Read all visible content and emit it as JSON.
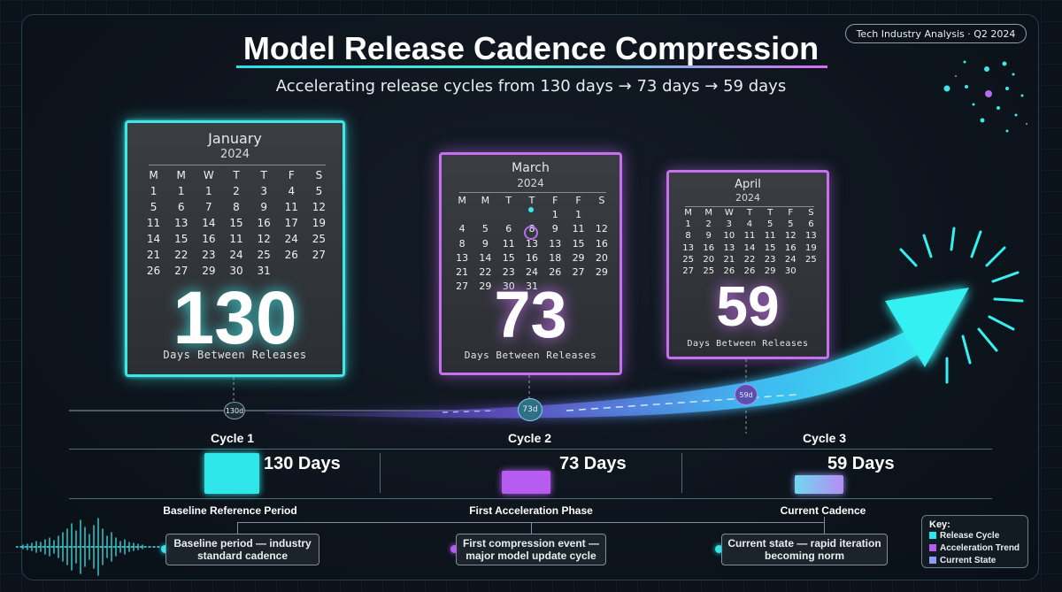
{
  "header": {
    "title": "Model Release Cadence Compression",
    "subtitle": "Accelerating release cycles from 130 days → 73 days → 59 days",
    "badge": "Tech Industry Analysis · Q2 2024"
  },
  "calendars": [
    {
      "month": "January",
      "year": "2024",
      "weekdays": [
        "M",
        "M",
        "W",
        "T",
        "T",
        "F",
        "S"
      ],
      "days": [
        "1",
        "1",
        "1",
        "2",
        "3",
        "4",
        "5",
        "5",
        "6",
        "7",
        "8",
        "9",
        "11",
        "12",
        "11",
        "13",
        "14",
        "15",
        "16",
        "17",
        "19",
        "14",
        "15",
        "16",
        "11",
        "12",
        "24",
        "25",
        "21",
        "22",
        "23",
        "24",
        "25",
        "26",
        "27",
        "26",
        "27",
        "29",
        "30",
        "31"
      ],
      "number": "130",
      "caption": "Days Between Releases"
    },
    {
      "month": "March",
      "year": "2024",
      "weekdays": [
        "M",
        "M",
        "T",
        "T",
        "F",
        "F",
        "S"
      ],
      "days": [
        "",
        "",
        "",
        "",
        "1",
        "1",
        "",
        "4",
        "5",
        "6",
        "8",
        "9",
        "11",
        "12",
        "8",
        "9",
        "11",
        "13",
        "13",
        "15",
        "16",
        "13",
        "14",
        "15",
        "16",
        "18",
        "29",
        "20",
        "21",
        "22",
        "23",
        "24",
        "26",
        "27",
        "29",
        "27",
        "29",
        "30",
        "31"
      ],
      "number": "73",
      "caption": "Days Between Releases"
    },
    {
      "month": "April",
      "year": "2024",
      "weekdays": [
        "M",
        "M",
        "W",
        "T",
        "T",
        "F",
        "S"
      ],
      "days": [
        "1",
        "2",
        "3",
        "4",
        "5",
        "5",
        "6",
        "8",
        "9",
        "10",
        "11",
        "11",
        "12",
        "13",
        "13",
        "16",
        "13",
        "14",
        "15",
        "16",
        "19",
        "25",
        "20",
        "21",
        "22",
        "23",
        "24",
        "25",
        "27",
        "25",
        "26",
        "26",
        "29",
        "30"
      ],
      "number": "59",
      "caption": "Days Between Releases"
    }
  ],
  "timeline": {
    "nodes": [
      "130d",
      "73d",
      "59d"
    ]
  },
  "cycles": [
    {
      "label": "Cycle 1",
      "days": "130 Days",
      "phase": "Baseline Reference Period",
      "note": "Baseline period — industry standard cadence",
      "value": 130,
      "color": "#2fe6ea"
    },
    {
      "label": "Cycle 2",
      "days": "73 Days",
      "phase": "First Acceleration Phase",
      "note": "First compression event — major model update cycle",
      "value": 73,
      "color": "#b65cf2"
    },
    {
      "label": "Cycle 3",
      "days": "59 Days",
      "phase": "Current Cadence",
      "note": "Current state — rapid iteration becoming norm",
      "value": 59,
      "color": "#8f9cf4"
    }
  ],
  "key": {
    "title": "Key:",
    "items": [
      {
        "label": "Release Cycle",
        "color": "#2fe6ea"
      },
      {
        "label": "Acceleration Trend",
        "color": "#b65cf2"
      },
      {
        "label": "Current State",
        "color": "#8f9cf4"
      }
    ]
  }
}
